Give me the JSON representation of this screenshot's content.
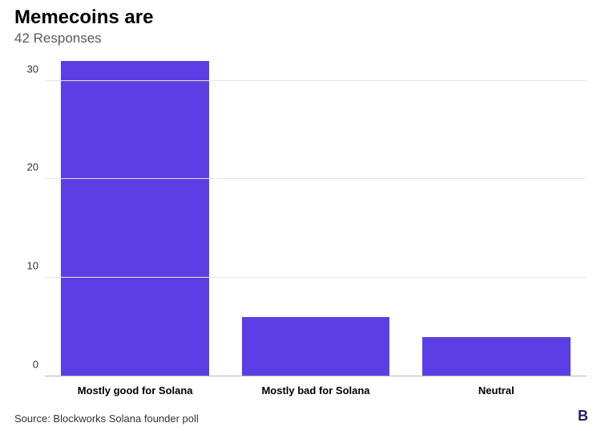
{
  "title": {
    "text": "Memecoins are",
    "fontsize": 24,
    "color": "#000000",
    "weight": 700
  },
  "subtitle": {
    "text": "42 Responses",
    "fontsize": 17,
    "color": "#5a5a5a",
    "weight": 400
  },
  "chart": {
    "type": "bar",
    "categories": [
      "Mostly good for Solana",
      "Mostly bad for Solana",
      "Neutral"
    ],
    "values": [
      32,
      6,
      4
    ],
    "bar_color": "#5b3fe4",
    "value_label_color": "#ffffff",
    "value_label_fontsize": 14,
    "xlabel_fontsize": 13,
    "xlabel_color": "#000000",
    "ylim": [
      0,
      32
    ],
    "yticks": [
      0,
      10,
      20,
      30
    ],
    "ytick_color": "#333333",
    "ytick_fontsize": 13,
    "grid_color": "#e4e4e4",
    "baseline_color": "#b8b8b8",
    "background_color": "#ffffff",
    "bar_width_pct": 82
  },
  "footer": {
    "source": "Source: Blockworks Solana founder poll",
    "source_color": "#333333",
    "source_fontsize": 13,
    "logo_text": "B",
    "logo_color": "#2a1a6a"
  }
}
